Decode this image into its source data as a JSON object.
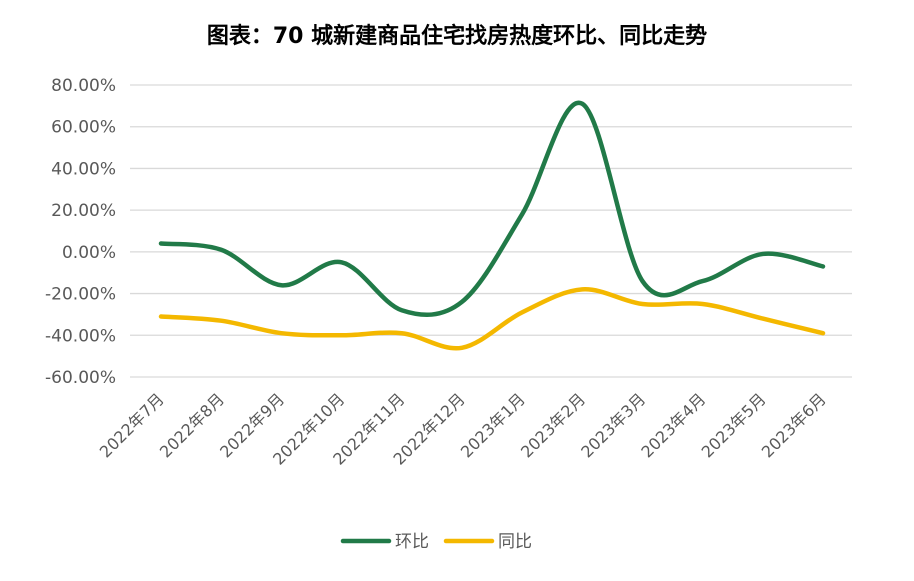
{
  "chart_data": {
    "type": "line",
    "title": "图表：70 城新建商品住宅找房热度环比、同比走势",
    "categories": [
      "2022年7月",
      "2022年8月",
      "2022年9月",
      "2022年10月",
      "2022年11月",
      "2022年12月",
      "2023年1月",
      "2023年2月",
      "2023年3月",
      "2023年4月",
      "2023年5月",
      "2023年6月"
    ],
    "series": [
      {
        "name": "环比",
        "color": "#217a48",
        "values": [
          4,
          1,
          -16,
          -5,
          -28,
          -24,
          18,
          71,
          -14,
          -14,
          -1,
          -7
        ]
      },
      {
        "name": "同比",
        "color": "#f4b800",
        "values": [
          -31,
          -33,
          -39,
          -40,
          -39,
          -46,
          -29,
          -18,
          -25,
          -25,
          -32,
          -39
        ]
      }
    ],
    "yticks": [
      "80.00%",
      "60.00%",
      "40.00%",
      "20.00%",
      "0.00%",
      "-20.00%",
      "-40.00%",
      "-60.00%"
    ],
    "ylim": [
      -60,
      80
    ],
    "grid": true,
    "legend_position": "bottom"
  }
}
